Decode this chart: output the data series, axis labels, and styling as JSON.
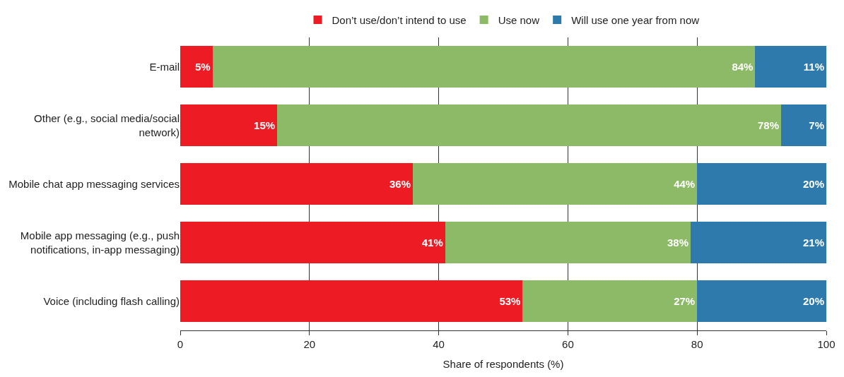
{
  "chart_data": {
    "type": "bar",
    "orientation": "horizontal",
    "stacked": true,
    "xlabel": "Share of respondents (%)",
    "categories": [
      "E-mail",
      "Other (e.g., social media/social network)",
      "Mobile chat app messaging services",
      "Mobile app messaging (e.g., push notifications, in-app messaging)",
      "Voice (including flash calling)"
    ],
    "series": [
      {
        "name": "Don’t use/don’t intend to use",
        "color": "#ed1c24",
        "values": [
          5,
          15,
          36,
          41,
          53
        ],
        "value_labels": [
          "5%",
          "15%",
          "36%",
          "41%",
          "53%"
        ]
      },
      {
        "name": "Use now",
        "color": "#8cba66",
        "values": [
          84,
          78,
          44,
          38,
          27
        ],
        "value_labels": [
          "84%",
          "78%",
          "44%",
          "38%",
          "27%"
        ]
      },
      {
        "name": "Will use one year from now",
        "color": "#2e7aad",
        "values": [
          11,
          7,
          20,
          21,
          20
        ],
        "value_labels": [
          "11%",
          "7%",
          "20%",
          "21%",
          "20%"
        ]
      }
    ],
    "xlim": [
      0,
      100
    ],
    "xticks": [
      0,
      20,
      40,
      60,
      80,
      100
    ],
    "grid": "x",
    "legend": "top"
  }
}
